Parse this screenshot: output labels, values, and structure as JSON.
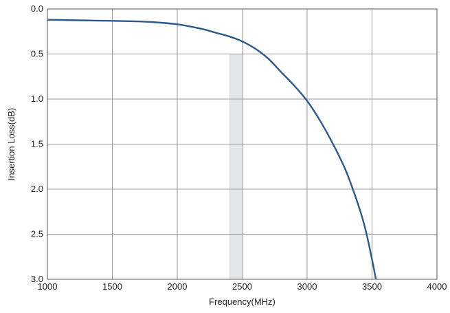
{
  "chart_data": {
    "type": "line",
    "title": "",
    "xlabel": "Frequency(MHz)",
    "ylabel": "Insertion Loss(dB)",
    "xlim": [
      1000,
      4000
    ],
    "ylim": [
      0,
      3
    ],
    "y_inverted": true,
    "grid": true,
    "x_ticks": [
      {
        "value": 1000,
        "label": "1000"
      },
      {
        "value": 1500,
        "label": "1500"
      },
      {
        "value": 2000,
        "label": "2000"
      },
      {
        "value": 2500,
        "label": "2500"
      },
      {
        "value": 3000,
        "label": "3000"
      },
      {
        "value": 3500,
        "label": "3500"
      },
      {
        "value": 4000,
        "label": "4000"
      }
    ],
    "y_ticks": [
      {
        "value": 0,
        "label": "0.0"
      },
      {
        "value": 0.5,
        "label": "0.5"
      },
      {
        "value": 1,
        "label": "1.0"
      },
      {
        "value": 1.5,
        "label": "1.5"
      },
      {
        "value": 2,
        "label": "2.0"
      },
      {
        "value": 2.5,
        "label": "2.5"
      },
      {
        "value": 3,
        "label": "3.0"
      }
    ],
    "highlight_band": {
      "x_from": 2400,
      "x_to": 2500,
      "y_from": 0.5,
      "y_to": 3.0,
      "color": "#e3e4e6"
    },
    "series": [
      {
        "color": "#2a5a8e",
        "points": [
          [
            1000,
            0.12
          ],
          [
            1200,
            0.125
          ],
          [
            1400,
            0.13
          ],
          [
            1600,
            0.135
          ],
          [
            1800,
            0.145
          ],
          [
            2000,
            0.17
          ],
          [
            2100,
            0.195
          ],
          [
            2200,
            0.225
          ],
          [
            2300,
            0.265
          ],
          [
            2400,
            0.305
          ],
          [
            2500,
            0.36
          ],
          [
            2600,
            0.44
          ],
          [
            2700,
            0.55
          ],
          [
            2800,
            0.7
          ],
          [
            2900,
            0.85
          ],
          [
            3000,
            1.02
          ],
          [
            3100,
            1.24
          ],
          [
            3200,
            1.5
          ],
          [
            3300,
            1.8
          ],
          [
            3400,
            2.2
          ],
          [
            3450,
            2.45
          ],
          [
            3500,
            2.78
          ],
          [
            3530,
            3.0
          ]
        ]
      }
    ]
  }
}
